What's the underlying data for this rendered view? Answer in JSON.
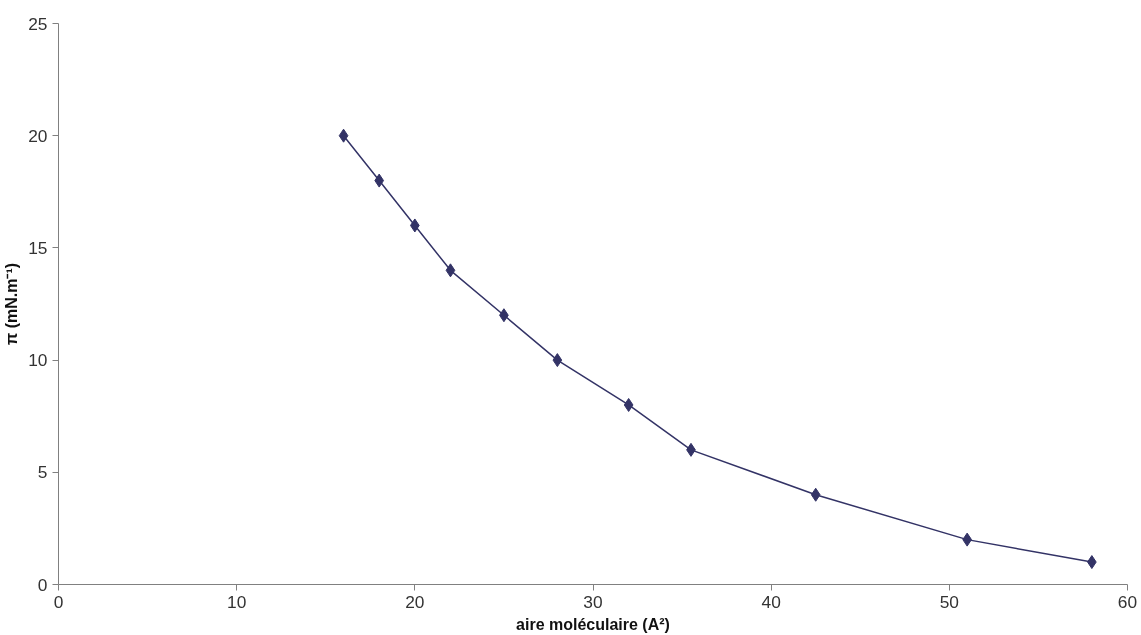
{
  "chart_data": {
    "type": "line",
    "xlabel": "aire moléculaire (A²)",
    "ylabel": "π (mN.m⁻¹)",
    "x": [
      16,
      18,
      20,
      22,
      25,
      28,
      32,
      35.5,
      42.5,
      51,
      58
    ],
    "series": [
      {
        "color": "#333366",
        "values": [
          20,
          18,
          16,
          14,
          12,
          10,
          8,
          6,
          4,
          2,
          1
        ]
      }
    ],
    "xlim": [
      0,
      60
    ],
    "xticks": [
      0,
      10,
      20,
      30,
      40,
      50,
      60
    ],
    "ylim": [
      0,
      25
    ],
    "yticks": [
      0,
      5,
      10,
      15,
      20,
      25
    ],
    "grid": false,
    "marker": "diamond",
    "line_style": "solid"
  }
}
